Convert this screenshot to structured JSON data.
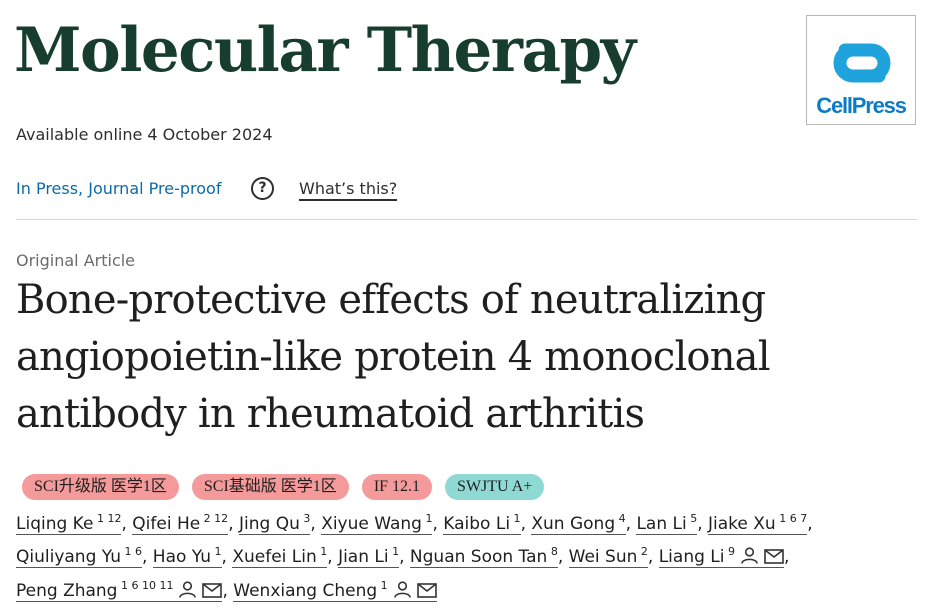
{
  "journal": {
    "title": "Molecular Therapy",
    "publisher_logo_text": "CellPress"
  },
  "availability": "Available online 4 October 2024",
  "status": {
    "label": "In Press, Journal Pre-proof",
    "help_icon": "?",
    "whats_this": "What’s this?"
  },
  "article": {
    "type": "Original Article",
    "title": "Bone-protective effects of neutralizing angiopoietin-like protein 4 monoclonal antibody in rheumatoid arthritis"
  },
  "badges": [
    {
      "label": "SCI升级版 医学1区",
      "color": "#f49a9a"
    },
    {
      "label": "SCI基础版 医学1区",
      "color": "#f49a9a"
    },
    {
      "label": "IF 12.1",
      "color": "#f49a9a"
    },
    {
      "label": "SWJTU A+",
      "color": "#8fd9d4"
    }
  ],
  "authors": [
    {
      "name": "Liqing Ke",
      "aff": "1 12"
    },
    {
      "name": "Qifei He",
      "aff": "2 12"
    },
    {
      "name": "Jing Qu",
      "aff": "3"
    },
    {
      "name": "Xiyue Wang",
      "aff": "1"
    },
    {
      "name": "Kaibo Li",
      "aff": "1"
    },
    {
      "name": "Xun Gong",
      "aff": "4"
    },
    {
      "name": "Lan Li",
      "aff": "5"
    },
    {
      "name": "Jiake Xu",
      "aff": "1 6 7"
    },
    {
      "name": "Qiuliyang Yu",
      "aff": "1 6"
    },
    {
      "name": "Hao Yu",
      "aff": "1"
    },
    {
      "name": "Xuefei Lin",
      "aff": "1"
    },
    {
      "name": "Jian Li",
      "aff": "1"
    },
    {
      "name": "Nguan Soon Tan",
      "aff": "8"
    },
    {
      "name": "Wei Sun",
      "aff": "2"
    },
    {
      "name": "Liang Li",
      "aff": "9",
      "icons": [
        "person-icon",
        "envelope-icon"
      ]
    },
    {
      "name": "Peng Zhang",
      "aff": "1 6 10 11",
      "icons": [
        "person-icon",
        "envelope-icon"
      ]
    },
    {
      "name": "Wenxiang Cheng",
      "aff": "1",
      "icons": [
        "person-icon",
        "envelope-icon"
      ]
    }
  ],
  "colors": {
    "journal_title": "#163d2e",
    "link": "#0c6aa8",
    "brand_blue": "#0c7cc4"
  }
}
